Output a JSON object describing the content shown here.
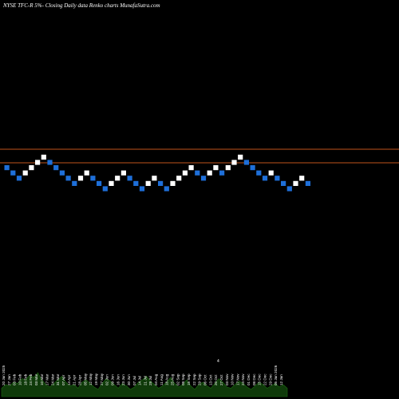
{
  "header": {
    "title": "NYSE TFC-R 5%-  Closing Daily data  Renko  charts MunafaSutra.com"
  },
  "colors": {
    "background": "#000000",
    "up_brick": "#ffffff",
    "down_brick": "#1e6fd9",
    "reference_line": "#c0541c",
    "volume": "#0f3a0a",
    "volume_edge": "#1d6a12"
  },
  "chart_data": {
    "type": "renko",
    "brick_direction_sequence": [
      "down",
      "down",
      "down",
      "up",
      "up",
      "up",
      "up",
      "down",
      "down",
      "down",
      "down",
      "down",
      "up",
      "up",
      "down",
      "down",
      "down",
      "up",
      "up",
      "up",
      "down",
      "down",
      "down",
      "up",
      "up",
      "down",
      "down",
      "up",
      "up",
      "up",
      "up",
      "down",
      "down",
      "up",
      "up",
      "down",
      "up",
      "up",
      "up",
      "down",
      "down",
      "down",
      "down",
      "up",
      "down",
      "down",
      "down",
      "up",
      "up",
      "down"
    ],
    "reference_lines": [
      "upper",
      "lower"
    ],
    "date_labels": [
      "20 Jan 2025",
      "27 Jan",
      "03 Feb",
      "10 Feb",
      "18 Feb",
      "24 Feb",
      "03 Mar",
      "10 Mar",
      "17 Mar",
      "24 Mar",
      "31 Mar",
      "07 Apr",
      "14 Apr",
      "21 Apr",
      "28 Apr",
      "05 May",
      "12 May",
      "19 May",
      "27 May",
      "02 Jun",
      "09 Jun",
      "16 Jun",
      "23 Jun",
      "30 Jun",
      "07 Jul",
      "14 Jul",
      "21 Jul",
      "28 Jul",
      "04 Aug",
      "11 Aug",
      "18 Aug",
      "25 Aug",
      "02 Sep",
      "08 Sep",
      "15 Sep",
      "22 Sep",
      "29 Sep",
      "06 Oct",
      "13 Oct",
      "20 Oct",
      "27 Oct",
      "03 Nov",
      "10 Nov",
      "17 Nov",
      "24 Nov",
      "01 Dec",
      "08 Dec",
      "15 Dec",
      "22 Dec",
      "29 Dec",
      "05 Jan 2026",
      "12 Jan"
    ],
    "volume_marker": "4",
    "volume_values": [
      0.35,
      0.5,
      0.45,
      0.6,
      0.55,
      0.75,
      0.7,
      0.9,
      0.8,
      1.0,
      0.7,
      0.5,
      0.4,
      0.55,
      0.7,
      0.85,
      0.6,
      0.45,
      0.5,
      0.35,
      0.6,
      0.7,
      0.55,
      0.4,
      0.3,
      0.55,
      0.75,
      0.65,
      0.5,
      0.35,
      0.55,
      0.45,
      0.3,
      0.4,
      0.6,
      0.7,
      0.85,
      0.65,
      0.5,
      0.35,
      0.45,
      0.6,
      0.8,
      0.55,
      0.4,
      0.5,
      0.7,
      0.45,
      0.3,
      0.5,
      0.6,
      0.45,
      0.35,
      0.55,
      0.75,
      0.6,
      0.4,
      0.35,
      0.5,
      0.65,
      0.55,
      0.4,
      0.3,
      0.45,
      0.6,
      0.5,
      0.35,
      0.45,
      0.55,
      0.4,
      0.5,
      0.35
    ]
  }
}
